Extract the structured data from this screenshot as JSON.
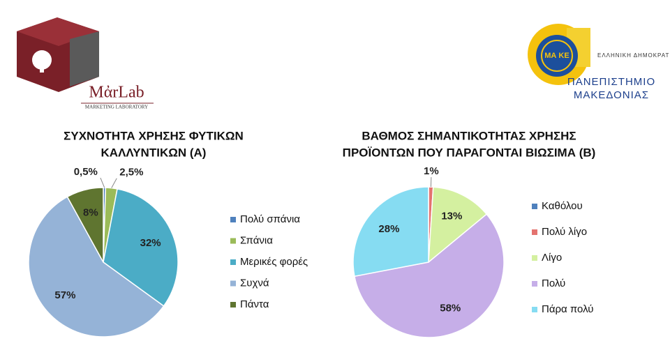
{
  "logos": {
    "lab_name": "MἀrLab",
    "lab_subtitle": "MARKETING LABORATORY",
    "emblem": "ΜΑ ΚΕ",
    "state": "ΕΛΛΗΝΙΚΗ ΔΗΜΟΚΡΑΤΙΑ",
    "university": [
      "ΠΑΝΕΠΙΣΤΗΜΙΟ",
      "ΜΑΚΕΔΟΝΙΑΣ"
    ]
  },
  "chart_data": [
    {
      "type": "pie",
      "title": [
        "ΣΥΧΝΟΤΗΤΑ ΧΡΗΣΗΣ ΦΥΤΙΚΩΝ",
        "ΚΑΛΛΥΝΤΙΚΩΝ  (Α)"
      ],
      "categories": [
        "Πολύ σπάνια",
        "Σπάνια",
        "Μερικές φορές",
        "Συχνά",
        "Πάντα"
      ],
      "values": [
        0.5,
        2.5,
        32,
        57,
        8
      ],
      "value_labels": [
        "0,5%",
        "2,5%",
        "32%",
        "57%",
        "8%"
      ],
      "colors": [
        "#4f81bd",
        "#9bbb59",
        "#4bacc6",
        "#95b3d7",
        "#5f7530"
      ]
    },
    {
      "type": "pie",
      "title": [
        "ΒΑΘΜΟΣ ΣΗΜΑΝΤΙΚΟΤΗΤΑΣ  ΧΡΗΣΗΣ",
        "ΠΡΟΪΟΝΤΩΝ ΠΟΥ ΠΑΡΑΓΟΝΤΑΙ ΒΙΩΣΙΜΑ (Β)"
      ],
      "categories": [
        "Καθόλου",
        "Πολύ λίγο",
        "Λίγο",
        "Πολύ",
        "Πάρα πολύ"
      ],
      "values": [
        0,
        1,
        13,
        58,
        28
      ],
      "value_labels": [
        null,
        "1%",
        "13%",
        "58%",
        "28%"
      ],
      "colors": [
        "#4f81bd",
        "#e4736f",
        "#d4f0a0",
        "#c6aee8",
        "#86dcf2"
      ]
    }
  ]
}
